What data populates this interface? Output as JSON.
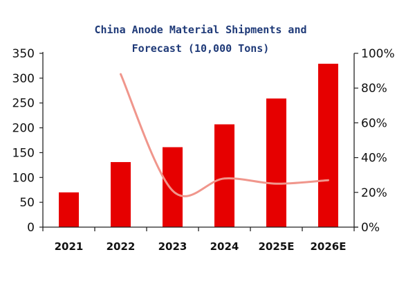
{
  "chart_data": {
    "type": "bar",
    "title_lines": [
      "China Anode Material Shipments and",
      "Forecast (10,000 Tons)"
    ],
    "categories": [
      "2021",
      "2022",
      "2023",
      "2024",
      "2025E",
      "2026E"
    ],
    "series": [
      {
        "type": "bar",
        "axis": "left",
        "values": [
          70,
          131,
          161,
          207,
          259,
          329
        ],
        "color": "#e60000"
      },
      {
        "type": "line",
        "axis": "right",
        "values": [
          null,
          88,
          21,
          28,
          25,
          27
        ],
        "color": "#f0968c",
        "smooth": true
      }
    ],
    "y_left": {
      "range": [
        0,
        350
      ],
      "ticks": [
        "0",
        "50",
        "100",
        "150",
        "200",
        "250",
        "300",
        "350"
      ]
    },
    "y_right": {
      "range": [
        0,
        100
      ],
      "ticks": [
        "0%",
        "20%",
        "40%",
        "60%",
        "80%",
        "100%"
      ]
    },
    "grid": false,
    "legend": "none"
  }
}
